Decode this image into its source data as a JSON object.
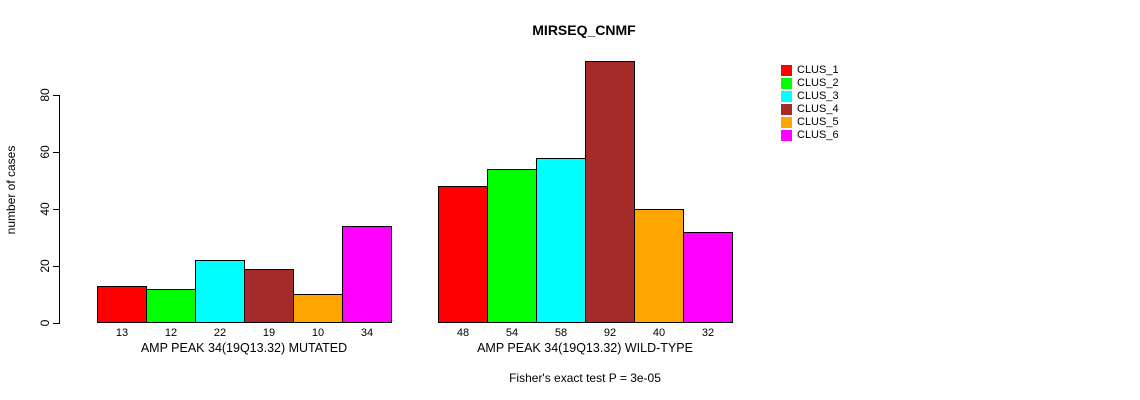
{
  "title": "MIRSEQ_CNMF",
  "chart_data": {
    "type": "bar",
    "title": "MIRSEQ_CNMF",
    "ylabel": "number of cases",
    "ylim": [
      0,
      92
    ],
    "yticks": [
      0,
      20,
      40,
      60,
      80
    ],
    "grid": false,
    "legend_position": "right",
    "series_names": [
      "CLUS_1",
      "CLUS_2",
      "CLUS_3",
      "CLUS_4",
      "CLUS_5",
      "CLUS_6"
    ],
    "series_colors": [
      "#ff0000",
      "#00ff00",
      "#00ffff",
      "#a52a2a",
      "#ffa500",
      "#ff00ff"
    ],
    "groups": [
      {
        "label": "AMP PEAK 34(19Q13.32) MUTATED",
        "values": [
          13,
          12,
          22,
          19,
          10,
          34
        ]
      },
      {
        "label": "AMP PEAK 34(19Q13.32) WILD-TYPE",
        "values": [
          48,
          54,
          58,
          92,
          40,
          32
        ]
      }
    ],
    "bar_value_labels_shown": true,
    "annotation": "Fisher's exact test P = 3e-05"
  }
}
